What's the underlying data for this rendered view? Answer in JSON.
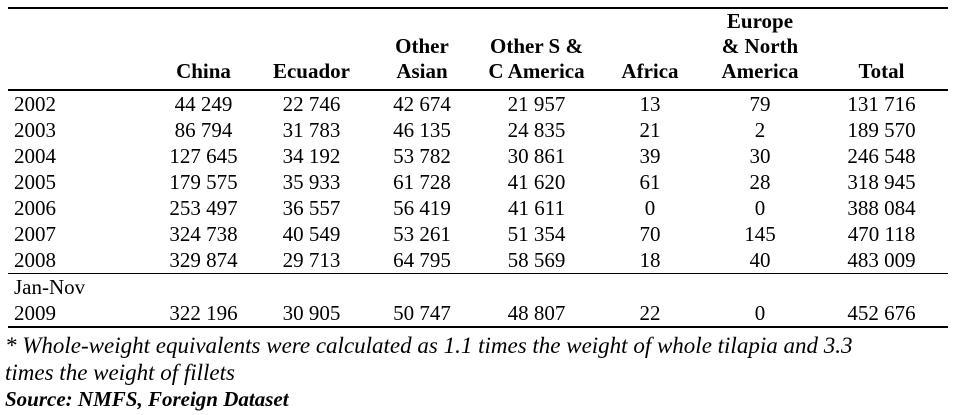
{
  "page": {
    "background_color": "#ffffff",
    "text_color": "#000000"
  },
  "table": {
    "type": "table",
    "columns": [
      "",
      "China",
      "Ecuador",
      "Other\nAsian",
      "Other S &\nC America",
      "Africa",
      "Europe\n& North\nAmerica",
      "Total"
    ],
    "rows": [
      {
        "year": "2002",
        "cells": [
          "44 249",
          "22 746",
          "42 674",
          "21 957",
          "13",
          "79",
          "131 716"
        ]
      },
      {
        "year": "2003",
        "cells": [
          "86 794",
          "31 783",
          "46 135",
          "24 835",
          "21",
          "2",
          "189 570"
        ]
      },
      {
        "year": "2004",
        "cells": [
          "127 645",
          "34 192",
          "53 782",
          "30 861",
          "39",
          "30",
          "246 548"
        ]
      },
      {
        "year": "2005",
        "cells": [
          "179 575",
          "35 933",
          "61 728",
          "41 620",
          "61",
          "28",
          "318 945"
        ]
      },
      {
        "year": "2006",
        "cells": [
          "253 497",
          "36 557",
          "56 419",
          "41 611",
          "0",
          "0",
          "388 084"
        ]
      },
      {
        "year": "2007",
        "cells": [
          "324 738",
          "40 549",
          "53 261",
          "51 354",
          "70",
          "145",
          "470 118"
        ]
      },
      {
        "year": "2008",
        "cells": [
          "329 874",
          "29 713",
          "64 795",
          "58 569",
          "18",
          "40",
          "483 009"
        ]
      },
      {
        "year": "Jan-Nov\n2009",
        "cells": [
          "322 196",
          "30 905",
          "50 747",
          "48 807",
          "22",
          "0",
          "452 676"
        ]
      }
    ]
  },
  "footnote": {
    "lines": [
      "* Whole-weight equivalents were calculated as 1.1 times the weight of whole tilapia and 3.3",
      "times the weight of fillets"
    ],
    "source": "Source: NMFS, Foreign Dataset"
  }
}
